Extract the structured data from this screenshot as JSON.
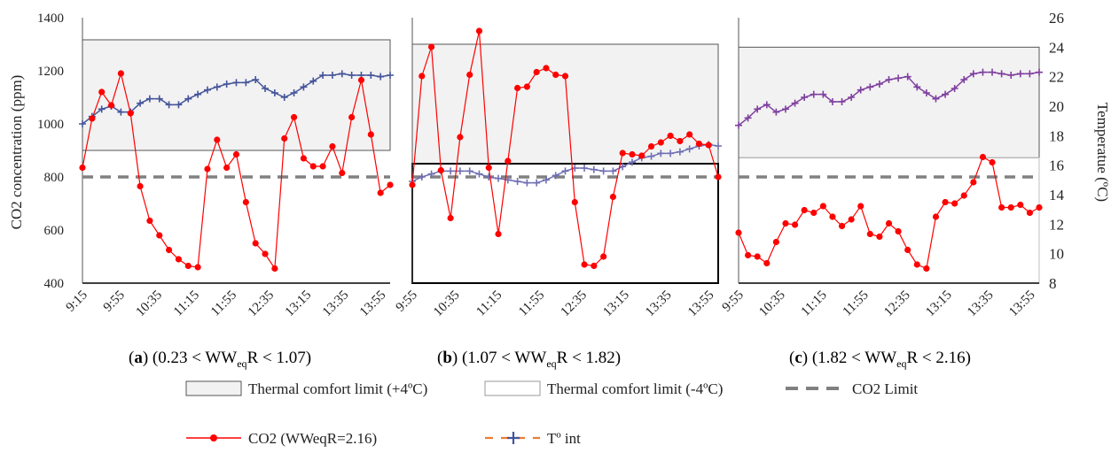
{
  "figure": {
    "y_left_label": "CO2 concentration (ppm)",
    "y_right_label": "Temperatue (ºC)",
    "y_left_ticks": [
      400,
      600,
      800,
      1000,
      1200,
      1400
    ],
    "y_right_ticks": [
      8,
      10,
      12,
      14,
      16,
      18,
      20,
      22,
      24,
      26
    ],
    "captions": [
      {
        "letter": "a",
        "pre": "(0.23 < WW",
        "sub": "eq",
        "post": "R < 1.07)"
      },
      {
        "letter": "b",
        "pre": "(1.07 < WW",
        "sub": "eq",
        "post": "R < 1.82)"
      },
      {
        "letter": "c",
        "pre": "(1.82 < WW",
        "sub": "eq",
        "post": "R < 2.16)"
      }
    ],
    "legend": {
      "comfort_upper": "Thermal comfort limit (+4ºC)",
      "comfort_lower": "Thermal comfort limit (-4ºC)",
      "co2_limit": "CO2 Limit",
      "co2": "CO2 (WWeqR=2.16)",
      "temp": "Tº int"
    },
    "colors": {
      "co2": "#ff0000",
      "temp_a": "#44549a",
      "temp_b": "#6f6fb4",
      "temp_c": "#7f3f9f",
      "comfort_fill": "#f2f2f2",
      "limit": "#808080",
      "temp_legend_dash": "#ed7d31"
    }
  },
  "chart_data": [
    {
      "type": "line",
      "panel": "a",
      "x_tick_labels": [
        "9:15",
        "9:55",
        "10:35",
        "11:15",
        "11:55",
        "12:35",
        "13:15",
        "13:35",
        "13:55"
      ],
      "co2_ppm": [
        835,
        1020,
        1120,
        1070,
        1190,
        1040,
        765,
        635,
        580,
        525,
        490,
        465,
        460,
        830,
        940,
        835,
        885,
        705,
        550,
        510,
        455,
        945,
        1025,
        870,
        840,
        840,
        915,
        815,
        1025,
        1165,
        960,
        740,
        770
      ],
      "temp_c": [
        18.8,
        19.3,
        19.8,
        20.0,
        19.6,
        19.6,
        20.2,
        20.5,
        20.5,
        20.1,
        20.1,
        20.5,
        20.8,
        21.1,
        21.3,
        21.5,
        21.6,
        21.6,
        21.8,
        21.2,
        20.9,
        20.6,
        20.9,
        21.3,
        21.7,
        22.1,
        22.1,
        22.2,
        22.1,
        22.1,
        22.1,
        22.0,
        22.1
      ],
      "comfort_upper_c": 24.5,
      "comfort_lower_c": 17.0,
      "co2_limit_ppm": 800,
      "ylim_co2": [
        400,
        1400
      ],
      "ylim_temp": [
        8,
        26
      ]
    },
    {
      "type": "line",
      "panel": "b",
      "x_tick_labels": [
        "9:55",
        "10:35",
        "11:15",
        "11:55",
        "12:35",
        "13:15",
        "13:35",
        "13:55"
      ],
      "co2_ppm": [
        770,
        1180,
        1290,
        825,
        645,
        950,
        1185,
        1350,
        835,
        585,
        860,
        1135,
        1140,
        1195,
        1210,
        1185,
        1180,
        705,
        470,
        465,
        500,
        725,
        890,
        885,
        880,
        915,
        930,
        955,
        935,
        960,
        925,
        920,
        800
      ],
      "temp_c": [
        14.9,
        15.2,
        15.4,
        15.6,
        15.6,
        15.6,
        15.6,
        15.4,
        15.2,
        15.1,
        15.0,
        14.9,
        14.8,
        14.8,
        15.0,
        15.3,
        15.6,
        15.8,
        15.8,
        15.7,
        15.6,
        15.6,
        15.9,
        16.2,
        16.5,
        16.6,
        16.8,
        16.8,
        16.9,
        17.1,
        17.3,
        17.4,
        17.3
      ],
      "comfort_upper_c": 24.2,
      "comfort_lower_c": 16.1,
      "co2_limit_ppm": 800,
      "ylim_co2": [
        400,
        1400
      ],
      "ylim_temp": [
        8,
        26
      ]
    },
    {
      "type": "line",
      "panel": "c",
      "x_tick_labels": [
        "9:55",
        "10:35",
        "11:15",
        "11:55",
        "12:35",
        "13:15",
        "13:35",
        "13:55"
      ],
      "co2_ppm": [
        590,
        505,
        500,
        475,
        555,
        625,
        620,
        675,
        665,
        690,
        650,
        615,
        640,
        690,
        585,
        575,
        625,
        595,
        525,
        470,
        455,
        650,
        705,
        700,
        730,
        780,
        875,
        855,
        685,
        685,
        695,
        665,
        685
      ],
      "temp_c": [
        18.7,
        19.2,
        19.8,
        20.1,
        19.6,
        19.8,
        20.2,
        20.6,
        20.8,
        20.8,
        20.3,
        20.3,
        20.6,
        21.1,
        21.3,
        21.5,
        21.8,
        21.9,
        22.0,
        21.3,
        20.9,
        20.5,
        20.8,
        21.2,
        21.8,
        22.2,
        22.3,
        22.3,
        22.2,
        22.1,
        22.2,
        22.2,
        22.3
      ],
      "comfort_upper_c": 24.0,
      "comfort_lower_c": 16.5,
      "co2_limit_ppm": 800,
      "ylim_co2": [
        400,
        1400
      ],
      "ylim_temp": [
        8,
        26
      ]
    }
  ]
}
